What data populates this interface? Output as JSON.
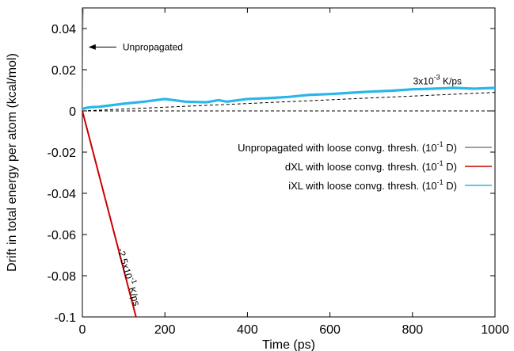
{
  "chart_data": {
    "type": "line",
    "xlabel": "Time (ps)",
    "ylabel": "Drift in total energy per atom (kcal/mol)",
    "xlim": [
      0,
      1000
    ],
    "ylim": [
      -0.1,
      0.05
    ],
    "xticks": [
      0,
      200,
      400,
      600,
      800,
      1000
    ],
    "xtick_labels": [
      "0",
      "200",
      "400",
      "600",
      "800",
      "1000"
    ],
    "yticks": [
      0.04,
      0.02,
      0,
      -0.02,
      -0.04,
      -0.06,
      -0.08,
      -0.1
    ],
    "ytick_labels": [
      "0.04",
      "0.02",
      "0",
      "-0.02",
      "-0.04",
      "-0.06",
      "-0.08",
      "-0.1"
    ],
    "grid": false,
    "legend_position": "right",
    "series": [
      {
        "name": "Unpropagated with loose convg. thresh. (10-1 D)",
        "legend": {
          "prefix": "Unpropagated with loose convg. thresh. (10",
          "exp": "-1",
          "suffix": " D)"
        },
        "color": "#808080",
        "x": [
          0,
          0.3,
          0.6,
          1,
          1.5,
          2
        ],
        "y": [
          0,
          0.01,
          0.025,
          0.038,
          0.046,
          0.05
        ]
      },
      {
        "name": "dXL with loose convg. thresh. (10-1 D)",
        "legend": {
          "prefix": "dXL with loose convg. thresh. (10",
          "exp": "-1",
          "suffix": " D)"
        },
        "color": "#cc0000",
        "x": [
          0,
          130
        ],
        "y": [
          0,
          -0.1
        ]
      },
      {
        "name": "iXL with loose convg. thresh. (10-1 D)",
        "legend": {
          "prefix": "iXL with loose convg. thresh. (10",
          "exp": "-1",
          "suffix": " D)"
        },
        "color": "#29b6e8",
        "x": [
          0,
          10,
          20,
          40,
          60,
          80,
          100,
          150,
          200,
          250,
          300,
          330,
          350,
          400,
          450,
          500,
          550,
          600,
          650,
          700,
          750,
          800,
          850,
          900,
          950,
          1000
        ],
        "y": [
          0.001,
          0.0015,
          0.0018,
          0.002,
          0.0025,
          0.003,
          0.0035,
          0.0045,
          0.0058,
          0.0045,
          0.0042,
          0.0052,
          0.0045,
          0.0058,
          0.0062,
          0.0068,
          0.0078,
          0.0082,
          0.0088,
          0.0094,
          0.0098,
          0.0105,
          0.0108,
          0.0112,
          0.0108,
          0.0112
        ]
      }
    ],
    "reference_lines": [
      {
        "style": "dashed",
        "color": "#000000",
        "x": [
          0,
          1000
        ],
        "y": [
          0,
          0
        ]
      },
      {
        "style": "dashed",
        "color": "#000000",
        "x": [
          0,
          1000
        ],
        "y": [
          0,
          0.009
        ]
      }
    ],
    "annotations": [
      {
        "kind": "arrow",
        "text": "Unpropagated",
        "x": 15,
        "y": 0.031,
        "text_x": 90
      },
      {
        "kind": "label",
        "text_prefix": "3x10",
        "exp": "-3",
        "text_suffix": " K/ps",
        "x": 840,
        "y": 0.0145
      },
      {
        "kind": "rotated",
        "text_prefix": "-2.5x10",
        "exp": "-1",
        "text_suffix": " K/ps",
        "x": 105,
        "y": -0.081,
        "angle": 74
      }
    ]
  }
}
